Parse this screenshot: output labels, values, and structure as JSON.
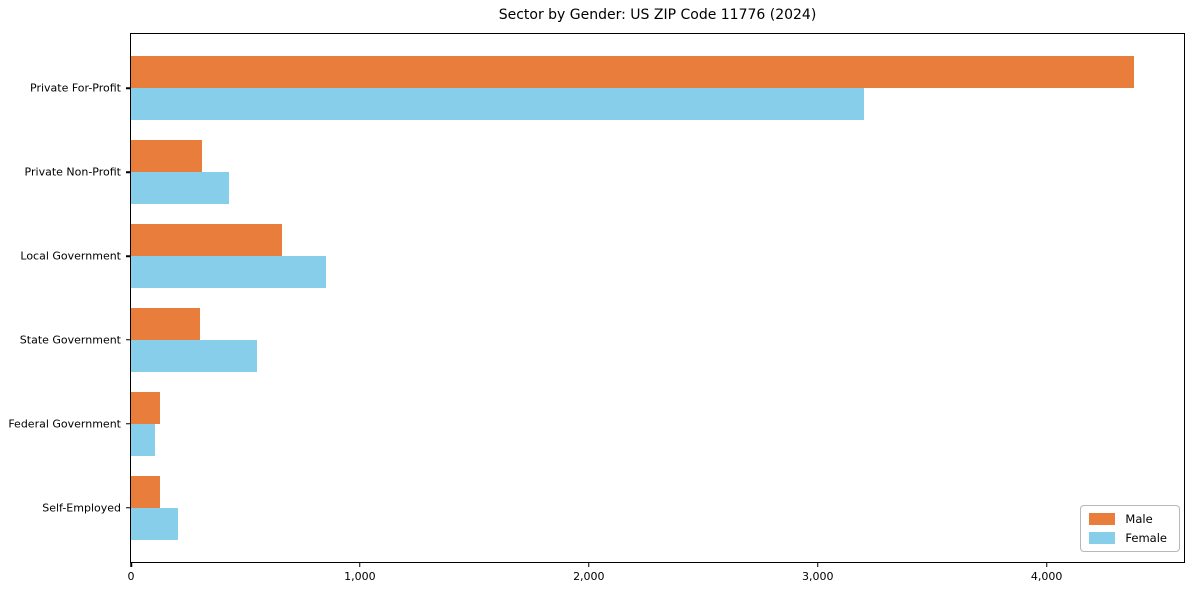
{
  "title": "Sector by Gender: US ZIP Code 11776 (2024)",
  "chart_data": {
    "type": "bar",
    "orientation": "horizontal",
    "title": "Sector by Gender: US ZIP Code 11776 (2024)",
    "categories": [
      "Private For-Profit",
      "Private Non-Profit",
      "Local Government",
      "State Government",
      "Federal Government",
      "Self-Employed"
    ],
    "series": [
      {
        "name": "Male",
        "color": "#E87D3C",
        "values": [
          4380,
          310,
          660,
          300,
          125,
          125
        ]
      },
      {
        "name": "Female",
        "color": "#87CEEB",
        "values": [
          3200,
          430,
          850,
          550,
          105,
          205
        ]
      }
    ],
    "xlim": [
      0,
      4600
    ],
    "xticks": [
      0,
      1000,
      2000,
      3000,
      4000
    ],
    "xtick_labels": [
      "0",
      "1,000",
      "2,000",
      "3,000",
      "4,000"
    ],
    "xlabel": "",
    "ylabel": "",
    "grid": false,
    "legend_position": "lower right"
  }
}
